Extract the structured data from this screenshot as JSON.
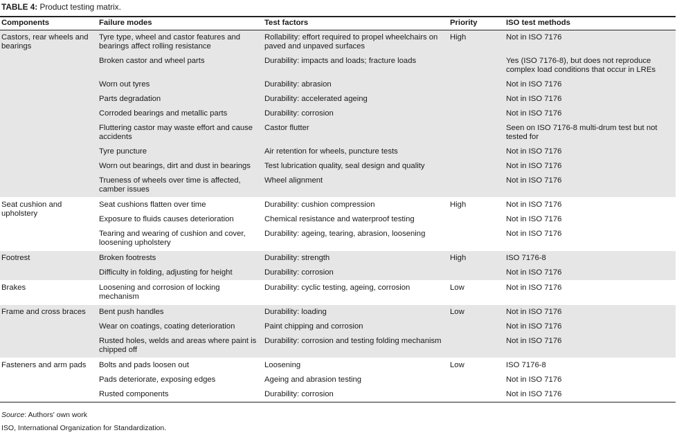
{
  "caption": {
    "label": "TABLE 4:",
    "text": " Product testing matrix."
  },
  "headers": [
    "Components",
    "Failure modes",
    "Test factors",
    "Priority",
    "ISO test methods"
  ],
  "groups": [
    {
      "component": "Castors, rear wheels and bearings",
      "priority": "High",
      "rows": [
        [
          "Tyre type, wheel and castor features and bearings affect rolling resistance",
          "Rollability: effort required to propel wheelchairs on paved and unpaved surfaces",
          "Not in ISO 7176"
        ],
        [
          "Broken castor and wheel parts",
          "Durability: impacts and loads; fracture loads",
          "Yes (ISO 7176-8), but does not reproduce complex load conditions that occur in LREs"
        ],
        [
          "Worn out tyres",
          "Durability: abrasion",
          "Not in ISO 7176"
        ],
        [
          "Parts degradation",
          "Durability: accelerated ageing",
          "Not in ISO 7176"
        ],
        [
          "Corroded bearings and metallic parts",
          "Durability: corrosion",
          "Not in ISO 7176"
        ],
        [
          "Fluttering castor may waste effort and cause accidents",
          "Castor flutter",
          "Seen on ISO 7176-8 multi-drum test but not tested for"
        ],
        [
          "Tyre puncture",
          "Air retention for wheels, puncture tests",
          "Not in ISO 7176"
        ],
        [
          "Worn out bearings, dirt and dust in bearings",
          "Test lubrication quality, seal design and quality",
          "Not in ISO 7176"
        ],
        [
          "Trueness of wheels over time is affected, camber issues",
          "Wheel alignment",
          "Not in ISO 7176"
        ]
      ]
    },
    {
      "component": "Seat cushion and upholstery",
      "priority": "High",
      "rows": [
        [
          "Seat cushions flatten over time",
          "Durability: cushion compression",
          "Not in ISO 7176"
        ],
        [
          "Exposure to fluids causes deterioration",
          "Chemical resistance and waterproof testing",
          "Not in ISO 7176"
        ],
        [
          "Tearing and wearing of cushion and cover, loosening upholstery",
          "Durability: ageing, tearing, abrasion, loosening",
          "Not in ISO 7176"
        ]
      ]
    },
    {
      "component": "Footrest",
      "priority": "High",
      "rows": [
        [
          "Broken footrests",
          "Durability: strength",
          "ISO 7176-8"
        ],
        [
          "Difficulty in folding, adjusting for height",
          "Durability: corrosion",
          "Not in ISO 7176"
        ]
      ]
    },
    {
      "component": "Brakes",
      "priority": "Low",
      "rows": [
        [
          "Loosening and corrosion of locking mechanism",
          "Durability: cyclic testing, ageing, corrosion",
          "Not in ISO 7176"
        ]
      ]
    },
    {
      "component": "Frame and cross braces",
      "priority": "Low",
      "rows": [
        [
          "Bent push handles",
          "Durability: loading",
          "Not in ISO 7176"
        ],
        [
          "Wear on coatings, coating deterioration",
          "Paint chipping and corrosion",
          "Not in ISO 7176"
        ],
        [
          "Rusted holes, welds and areas where paint is chipped off",
          "Durability: corrosion and testing folding mechanism",
          "Not in ISO 7176"
        ]
      ]
    },
    {
      "component": "Fasteners and arm pads",
      "priority": "Low",
      "rows": [
        [
          "Bolts and pads loosen out",
          "Loosening",
          "ISO 7176-8"
        ],
        [
          "Pads deteriorate, exposing edges",
          "Ageing and abrasion testing",
          "Not in ISO 7176"
        ],
        [
          "Rusted components",
          "Durability: corrosion",
          "Not in ISO 7176"
        ]
      ]
    }
  ],
  "source": {
    "label": "Source",
    "text": ": Authors' own work"
  },
  "abbrev": "ISO, International Organization for Standardization."
}
